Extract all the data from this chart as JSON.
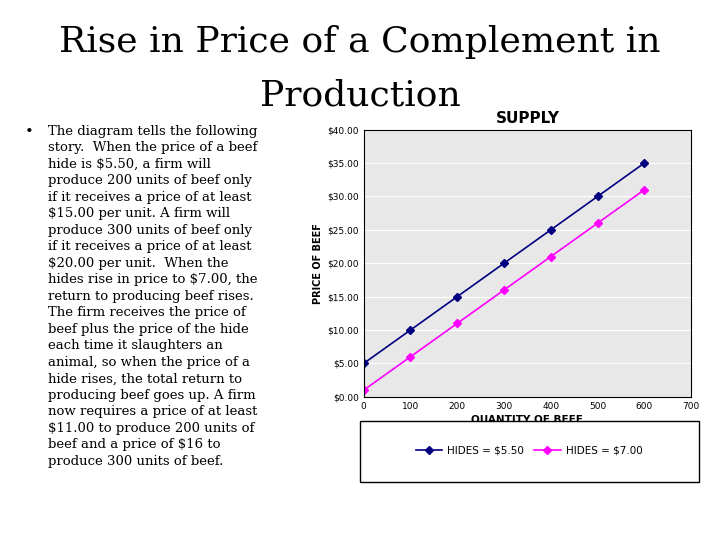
{
  "title_line1": "Rise in Price of a Complement in",
  "title_line2": "Production",
  "title_fontsize": 26,
  "title_fontweight": "normal",
  "title_fontfamily": "serif",
  "bullet_text": "The diagram tells the following\nstory.  When the price of a beef\nhide is $5.50, a firm will\nproduce 200 units of beef only\nif it receives a price of at least\n$15.00 per unit. A firm will\nproduce 300 units of beef only\nif it receives a price of at least\n$20.00 per unit.  When the\nhides rise in price to $7.00, the\nreturn to producing beef rises.\nThe firm receives the price of\nbeef plus the price of the hide\neach time it slaughters an\nanimal, so when the price of a\nhide rises, the total return to\nproducing beef goes up. A firm\nnow requires a price of at least\n$11.00 to produce 200 units of\nbeef and a price of $16 to\nproduce 300 units of beef.",
  "bullet_fontsize": 9.5,
  "bullet_fontfamily": "serif",
  "chart_title": "SUPPLY",
  "chart_title_fontsize": 11,
  "xlabel": "QUANTITY OF BEEF",
  "ylabel": "PRICE OF BEEF",
  "xlabel_fontsize": 7.5,
  "ylabel_fontsize": 7,
  "x_series1": [
    0,
    100,
    200,
    300,
    400,
    500,
    600
  ],
  "y_series1": [
    5,
    10,
    15,
    20,
    25,
    30,
    35
  ],
  "x_series2": [
    0,
    100,
    200,
    300,
    400,
    500,
    600
  ],
  "y_series2": [
    1,
    6,
    11,
    16,
    21,
    26,
    31
  ],
  "color_series1": "#000080",
  "color_series2": "#FF00FF",
  "label_series1": "HIDES = $5.50",
  "label_series2": "HIDES = $7.00",
  "xlim": [
    0,
    700
  ],
  "ylim": [
    0,
    40
  ],
  "xticks": [
    0,
    100,
    200,
    300,
    400,
    500,
    600,
    700
  ],
  "ytick_labels": [
    "$0.00",
    "$5.00",
    "$10.00",
    "$15.00",
    "$20.00",
    "$25.00",
    "$30.00",
    "$35.00",
    "$40.00"
  ],
  "ytick_values": [
    0,
    5,
    10,
    15,
    20,
    25,
    30,
    35,
    40
  ],
  "chart_bg_color": "#e8e8e8",
  "bg_color": "#ffffff",
  "tick_fontsize": 6.5,
  "legend_fontsize": 7.5,
  "marker_size": 4,
  "line_width": 1.2
}
